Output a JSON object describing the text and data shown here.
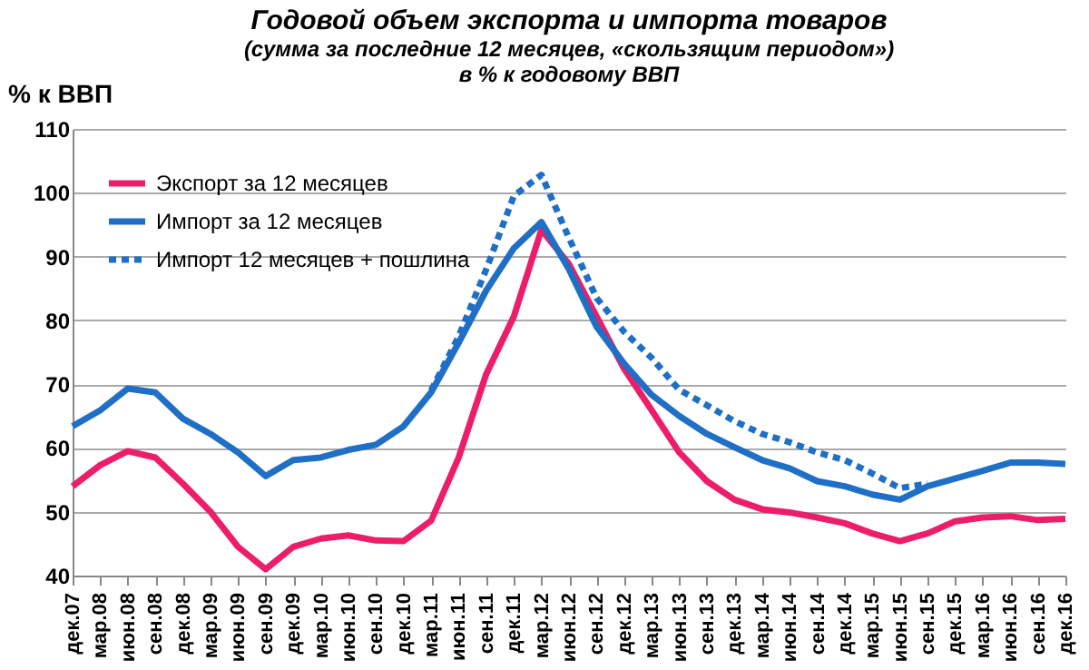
{
  "chart_data": {
    "type": "line",
    "title": "Годовой объем экспорта и импорта товаров",
    "subtitle": "(сумма за последние 12 месяцев, «скользящим периодом»)",
    "annotations": [
      "в % к годовому ВВП"
    ],
    "ylabel": "% к ВВП",
    "categories": [
      "дек.07",
      "мар.08",
      "июн.08",
      "сен.08",
      "дек.08",
      "мар.09",
      "июн.09",
      "сен.09",
      "дек.09",
      "мар.10",
      "июн.10",
      "сен.10",
      "дек.10",
      "мар.11",
      "июн.11",
      "сен.11",
      "дек.11",
      "мар.12",
      "июн.12",
      "сен.12",
      "дек.12",
      "мар.13",
      "июн.13",
      "сен.13",
      "дек.13",
      "мар.14",
      "июн.14",
      "сен.14",
      "дек.14",
      "мар.15",
      "июн.15",
      "сен.15",
      "дек.15",
      "мар.16",
      "июн.16",
      "сен.16",
      "дек.16"
    ],
    "series": [
      {
        "name": "Экспорт за 12 месяцев",
        "color": "#ec1e6a",
        "line_style": "solid",
        "values": [
          54,
          57.3,
          59.5,
          58.5,
          54.4,
          50,
          44.5,
          41,
          44.5,
          45.8,
          46.3,
          45.5,
          45.4,
          48.6,
          58.5,
          71.6,
          80.6,
          94.2,
          88.8,
          80.6,
          72.4,
          65.9,
          59.3,
          54.8,
          51.9,
          50.4,
          49.9,
          49.1,
          48.2,
          46.6,
          45.4,
          46.6,
          48.5,
          49.1,
          49.3,
          48.7,
          48.9
        ]
      },
      {
        "name": "Импорт за 12 месяцев",
        "color": "#1f6fc6",
        "line_style": "solid",
        "values": [
          63.4,
          65.9,
          69.3,
          68.7,
          64.6,
          62.2,
          59.3,
          55.6,
          58.1,
          58.5,
          59.7,
          60.5,
          63.4,
          68.7,
          76.5,
          84.7,
          91.3,
          95.4,
          88,
          79,
          73.2,
          68.3,
          65,
          62.2,
          60.1,
          58.1,
          56.8,
          54.8,
          54,
          52.7,
          51.9,
          54,
          55.2,
          56.4,
          57.7,
          57.7,
          57.5
        ]
      },
      {
        "name": "Импорт 12 месяцев + пошлина",
        "color": "#1f6fc6",
        "line_style": "dashed",
        "values": [
          null,
          null,
          null,
          null,
          null,
          null,
          null,
          null,
          null,
          null,
          null,
          null,
          null,
          69,
          77.5,
          88,
          99.5,
          102.8,
          92.9,
          83.5,
          78.2,
          74.1,
          69.1,
          66.7,
          64.2,
          62.2,
          60.9,
          59.3,
          58.1,
          56,
          53.7,
          54.4,
          null,
          null,
          null,
          null,
          null
        ]
      }
    ],
    "ylim": [
      40,
      110
    ],
    "yticks": [
      40,
      50,
      60,
      70,
      80,
      90,
      100,
      110
    ],
    "grid": "y",
    "legend": "top left",
    "marker": "none"
  }
}
